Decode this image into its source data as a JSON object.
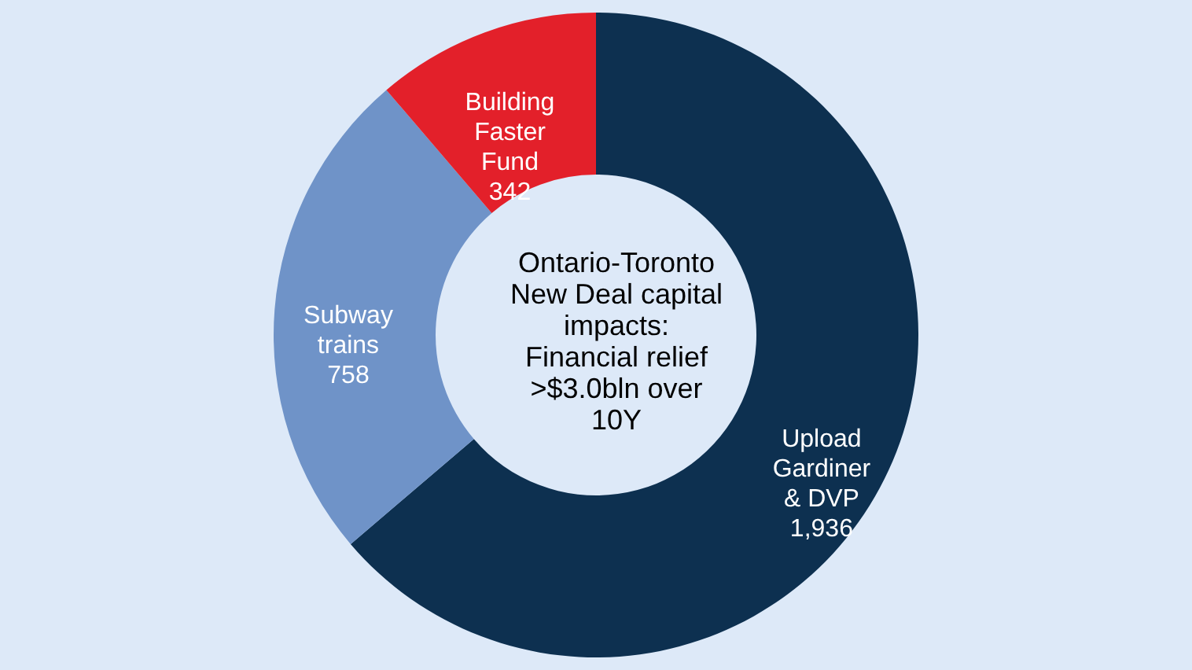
{
  "chart_data": {
    "type": "donut",
    "categories": [
      "Upload Gardiner & DVP",
      "Subway trains",
      "Building Faster Fund"
    ],
    "values": [
      1936,
      758,
      342
    ],
    "colors": [
      "#0d3050",
      "#6f93c8",
      "#e3202a"
    ],
    "value_labels": [
      "1,936",
      "758",
      "342"
    ],
    "annotations": [
      "Ontario-Toronto New Deal capital impacts: Financial relief >$3.0bln over 10Y"
    ]
  }
}
